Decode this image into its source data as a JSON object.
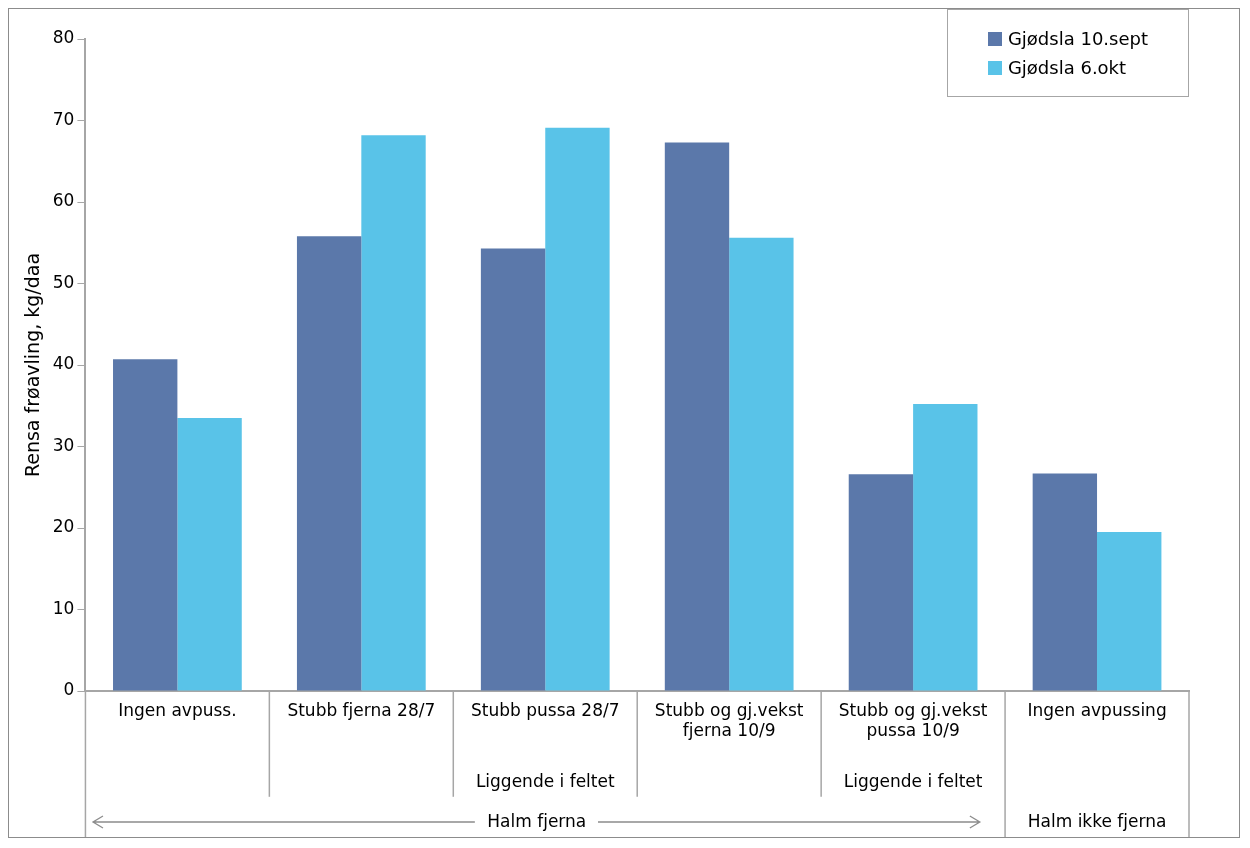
{
  "chart_data": {
    "type": "bar",
    "ylabel": "Rensa frøavling, kg/daa",
    "categories": [
      "Ingen avpuss.",
      "Stubb fjerna 28/7",
      "Stubb pussa 28/7",
      "Stubb og gj.vekst fjerna 10/9",
      "Stubb og gj.vekst pussa 10/9",
      "Ingen avpussing"
    ],
    "series": [
      {
        "name": "Gjødsla 10.sept",
        "color": "#5b78aa",
        "values": [
          40.7,
          55.8,
          54.3,
          67.3,
          26.6,
          26.7
        ]
      },
      {
        "name": "Gjødsla 6.okt",
        "color": "#59c3e8",
        "values": [
          33.5,
          68.2,
          69.1,
          55.6,
          35.2,
          19.5
        ]
      }
    ],
    "ylim": [
      0,
      80
    ],
    "yticks": [
      0,
      10,
      20,
      30,
      40,
      50,
      60,
      70,
      80
    ],
    "grid": false,
    "legend": "top right",
    "annotations": [
      "Liggende i feltet",
      "Liggende i feltet",
      "Halm fjerna",
      "Halm ikke fjerna"
    ]
  }
}
